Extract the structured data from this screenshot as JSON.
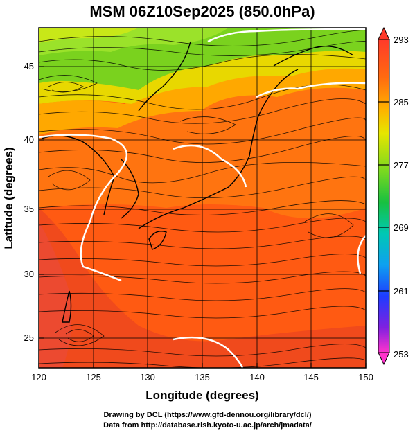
{
  "title": "MSM 06Z10Sep2025 (850.0hPa)",
  "xlabel": "Longitude (degrees)",
  "ylabel": "Latitude  (degrees)",
  "x_ticks": [
    "120",
    "125",
    "130",
    "135",
    "140",
    "145",
    "150"
  ],
  "y_ticks": [
    "25",
    "30",
    "35",
    "40",
    "45"
  ],
  "colorbar": {
    "tick_labels": [
      "293",
      "285",
      "277",
      "269",
      "261",
      "253"
    ],
    "min": 253,
    "max": 293,
    "colors": {
      "top": "#ff4030",
      "orange": "#ff8c00",
      "yellow": "#e6e600",
      "green": "#22cc22",
      "cyan": "#00c8c8",
      "blue": "#1e3cff",
      "bottom": "#ff33cc"
    }
  },
  "footer": {
    "line1": "Drawing by DCL (https://www.gfd-dennou.org/library/dcl/)",
    "line2": "Data from http://database.rish.kyoto-u.ac.jp/arch/jmadata/"
  },
  "chart_data": {
    "type": "heatmap",
    "title": "MSM 06Z10Sep2025 (850.0hPa)",
    "xlabel": "Longitude (degrees)",
    "ylabel": "Latitude  (degrees)",
    "xlim": [
      120,
      150
    ],
    "ylim": [
      22.5,
      47.5
    ],
    "x_ticks": [
      120,
      125,
      130,
      135,
      140,
      145,
      150
    ],
    "y_ticks": [
      25,
      30,
      35,
      40,
      45
    ],
    "grid": true,
    "overlay": "streamlines (wind) + coastlines + white contour",
    "colorbar_range": [
      253,
      293
    ],
    "colorbar_ticks": [
      293,
      285,
      277,
      269,
      261,
      253
    ]
  }
}
